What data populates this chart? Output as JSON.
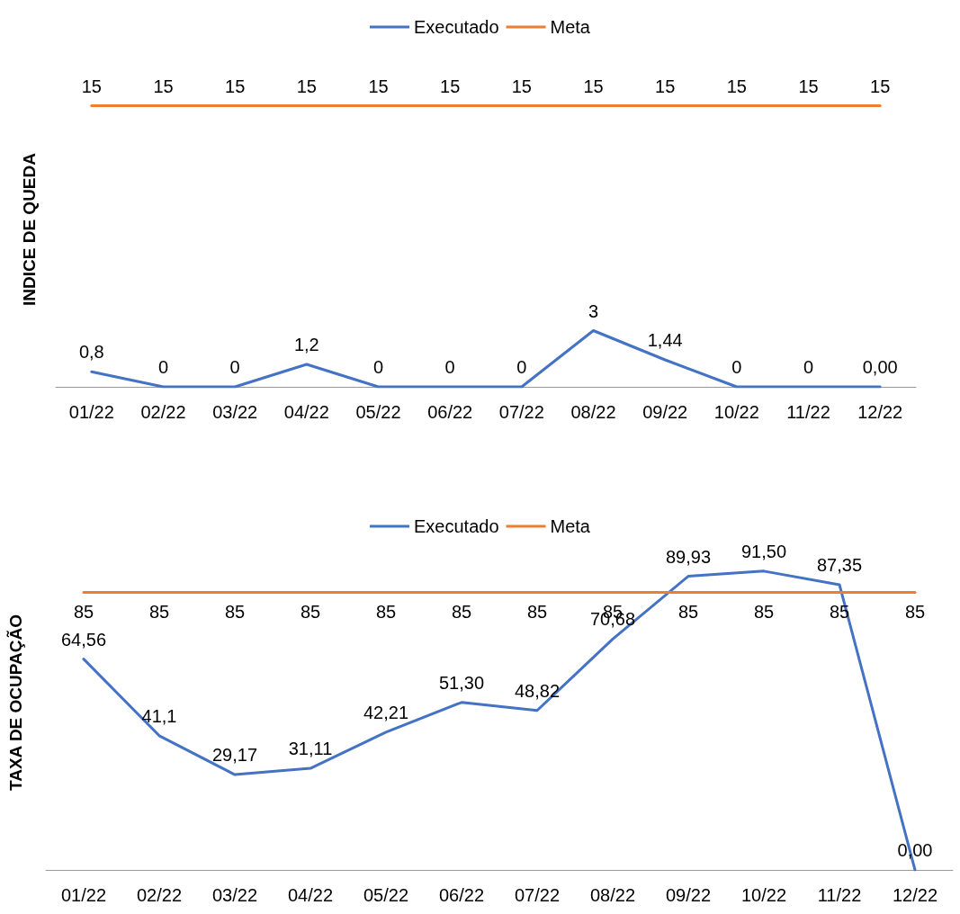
{
  "chart_data": [
    {
      "type": "line",
      "ylabel": "INDICE DE QUEDA",
      "categories": [
        "01/22",
        "02/22",
        "03/22",
        "04/22",
        "05/22",
        "06/22",
        "07/22",
        "08/22",
        "09/22",
        "10/22",
        "11/22",
        "12/22"
      ],
      "tick_labels": "x",
      "grid": false,
      "legend": "top",
      "marker": "none",
      "line_style": "solid",
      "series": [
        {
          "name": "Executado",
          "color": "#4472c4",
          "values": [
            0.8,
            0,
            0,
            1.2,
            0,
            0,
            0,
            3,
            1.44,
            0,
            0,
            0
          ],
          "value_labels": [
            "0,8",
            "0",
            "0",
            "1,2",
            "0",
            "0",
            "0",
            "3",
            "1,44",
            "0",
            "0",
            "0,00"
          ]
        },
        {
          "name": "Meta",
          "color": "#ed7d31",
          "values": [
            15,
            15,
            15,
            15,
            15,
            15,
            15,
            15,
            15,
            15,
            15,
            15
          ],
          "value_labels": [
            "15",
            "15",
            "15",
            "15",
            "15",
            "15",
            "15",
            "15",
            "15",
            "15",
            "15",
            "15"
          ]
        }
      ]
    },
    {
      "type": "line",
      "ylabel": "TAXA DE OCUPAÇÃO",
      "categories": [
        "01/22",
        "02/22",
        "03/22",
        "04/22",
        "05/22",
        "06/22",
        "07/22",
        "08/22",
        "09/22",
        "10/22",
        "11/22",
        "12/22"
      ],
      "tick_labels": "x",
      "grid": false,
      "legend": "top",
      "marker": "none",
      "line_style": "solid",
      "series": [
        {
          "name": "Executado",
          "color": "#4472c4",
          "values": [
            64.56,
            41.1,
            29.17,
            31.11,
            42.21,
            51.3,
            48.82,
            70.68,
            89.93,
            91.5,
            87.35,
            0
          ],
          "value_labels": [
            "64,56",
            "41,1",
            "29,17",
            "31,11",
            "42,21",
            "51,30",
            "48,82",
            "70,68",
            "89,93",
            "91,50",
            "87,35",
            "0,00"
          ]
        },
        {
          "name": "Meta",
          "color": "#ed7d31",
          "values": [
            85,
            85,
            85,
            85,
            85,
            85,
            85,
            85,
            85,
            85,
            85,
            85
          ],
          "value_labels": [
            "85",
            "85",
            "85",
            "85",
            "85",
            "85",
            "85",
            "85",
            "85",
            "85",
            "85",
            "85"
          ]
        }
      ]
    }
  ]
}
